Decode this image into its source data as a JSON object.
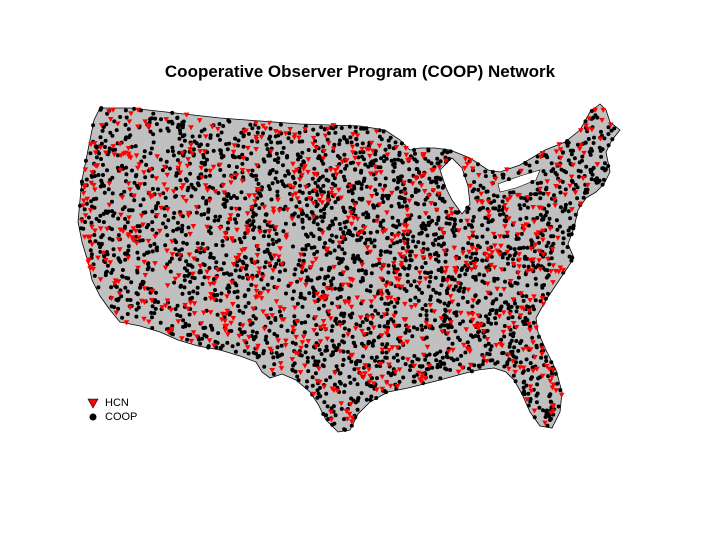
{
  "title": "Cooperative Observer Program (COOP) Network",
  "legend": {
    "hcn_label": "HCN",
    "coop_label": "COOP"
  },
  "colors": {
    "land": "#c0c0c0",
    "border": "#000000",
    "hcn": "#ff0000",
    "coop": "#000000"
  }
}
